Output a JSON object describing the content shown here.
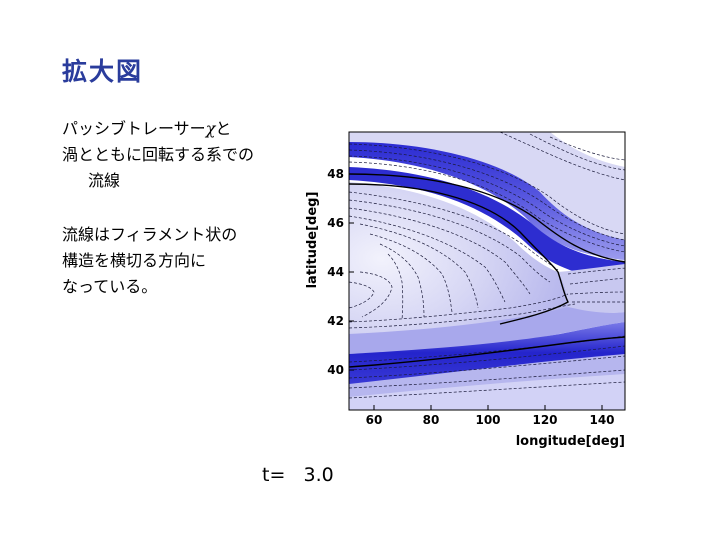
{
  "title": "拡大図",
  "paragraphs": [
    {
      "lines": [
        {
          "pre": "パッシブトレーサー",
          "chi": "χ",
          "post": "と"
        },
        {
          "text": "渦とともに回転する系での"
        },
        {
          "text": "流線",
          "indent": true
        }
      ]
    },
    {
      "lines": [
        {
          "text": "流線はフィラメント状の"
        },
        {
          "text": "構造を横切る方向に"
        },
        {
          "text": "なっている。"
        }
      ]
    }
  ],
  "time_label": "t=   3.0",
  "chart_data": {
    "type": "contour",
    "xlabel": "longitude[deg]",
    "ylabel": "latitude[deg]",
    "xlim": [
      50,
      147
    ],
    "ylim": [
      38.3,
      50.8
    ],
    "xticks": [
      60,
      80,
      100,
      120,
      140
    ],
    "yticks": [
      40,
      42,
      44,
      46,
      48
    ],
    "colors": {
      "fill_dark": "#1d1dc8",
      "fill_light": "#e2e2f6",
      "background": "#ffffff"
    }
  }
}
